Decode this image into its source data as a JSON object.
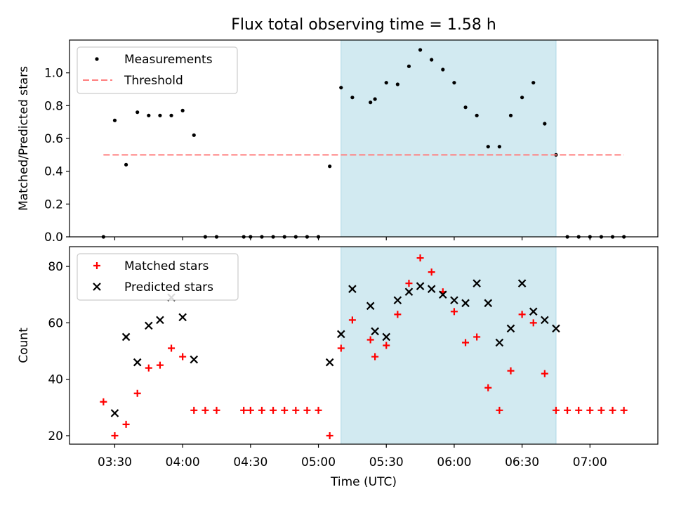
{
  "title": "Flux total observing time = 1.58 h",
  "colors": {
    "measurement": "#000000",
    "threshold": "#ff7f7f",
    "matched": "#ff0000",
    "predicted": "#000000",
    "highlight": "#add8e6"
  },
  "chart_data": [
    {
      "type": "scatter",
      "ylabel": "Matched/Predicted stars",
      "ylim": [
        0,
        1.2
      ],
      "yticks": [
        0.0,
        0.2,
        0.4,
        0.6,
        0.8,
        1.0
      ],
      "ytick_labels": [
        "0.0",
        "0.2",
        "0.4",
        "0.6",
        "0.8",
        "1.0"
      ],
      "highlight_span": [
        "05:10",
        "06:45"
      ],
      "legend": {
        "position": "upper-left",
        "entries": [
          "Measurements",
          "Threshold"
        ]
      },
      "series": [
        {
          "name": "Measurements",
          "marker": "dot",
          "x": [
            "03:25",
            "03:30",
            "03:35",
            "03:40",
            "03:45",
            "03:50",
            "03:55",
            "04:00",
            "04:05",
            "04:10",
            "04:15",
            "04:27",
            "04:30",
            "04:35",
            "04:40",
            "04:45",
            "04:50",
            "04:55",
            "05:00",
            "05:05",
            "05:10",
            "05:15",
            "05:23",
            "05:25",
            "05:30",
            "05:35",
            "05:40",
            "05:45",
            "05:50",
            "05:55",
            "06:00",
            "06:05",
            "06:10",
            "06:15",
            "06:20",
            "06:25",
            "06:30",
            "06:35",
            "06:40",
            "06:45",
            "06:50",
            "06:55",
            "07:00",
            "07:05",
            "07:10",
            "07:15"
          ],
          "values": [
            0,
            0.71,
            0.44,
            0.76,
            0.74,
            0.74,
            0.74,
            0.77,
            0.62,
            0,
            0,
            0,
            0,
            0,
            0,
            0,
            0,
            0,
            0,
            0.43,
            0.91,
            0.85,
            0.82,
            0.84,
            0.94,
            0.93,
            1.04,
            1.14,
            1.08,
            1.02,
            0.94,
            0.79,
            0.74,
            0.55,
            0.55,
            0.74,
            0.85,
            0.94,
            0.69,
            0.5,
            0,
            0,
            0,
            0,
            0,
            0
          ]
        },
        {
          "name": "Threshold",
          "style": "dashed-line",
          "x": [
            "03:25",
            "07:15"
          ],
          "values": [
            0.5,
            0.5
          ]
        }
      ]
    },
    {
      "type": "scatter",
      "xlabel": "Time (UTC)",
      "ylabel": "Count",
      "ylim": [
        17,
        87
      ],
      "yticks": [
        20,
        40,
        60,
        80
      ],
      "ytick_labels": [
        "20",
        "40",
        "60",
        "80"
      ],
      "xticks": [
        "03:30",
        "04:00",
        "04:30",
        "05:00",
        "05:30",
        "06:00",
        "06:30",
        "07:00"
      ],
      "xtick_labels": [
        "03:30",
        "04:00",
        "04:30",
        "05:00",
        "05:30",
        "06:00",
        "06:30",
        "07:00"
      ],
      "xlim": [
        "03:10",
        "07:30"
      ],
      "highlight_span": [
        "05:10",
        "06:45"
      ],
      "legend": {
        "position": "upper-left",
        "entries": [
          "Matched stars",
          "Predicted stars"
        ]
      },
      "series": [
        {
          "name": "Matched stars",
          "marker": "plus",
          "x": [
            "03:25",
            "03:30",
            "03:35",
            "03:40",
            "03:45",
            "03:50",
            "03:55",
            "04:00",
            "04:05",
            "04:10",
            "04:15",
            "04:27",
            "04:30",
            "04:35",
            "04:40",
            "04:45",
            "04:50",
            "04:55",
            "05:00",
            "05:05",
            "05:10",
            "05:15",
            "05:23",
            "05:25",
            "05:30",
            "05:35",
            "05:40",
            "05:45",
            "05:50",
            "05:55",
            "06:00",
            "06:05",
            "06:10",
            "06:15",
            "06:20",
            "06:25",
            "06:30",
            "06:35",
            "06:40",
            "06:45",
            "06:50",
            "06:55",
            "07:00",
            "07:05",
            "07:10",
            "07:15"
          ],
          "values": [
            32,
            20,
            24,
            35,
            44,
            45,
            51,
            48,
            29,
            29,
            29,
            29,
            29,
            29,
            29,
            29,
            29,
            29,
            29,
            20,
            51,
            61,
            54,
            48,
            52,
            63,
            74,
            83,
            78,
            71,
            64,
            53,
            55,
            37,
            29,
            43,
            63,
            60,
            42,
            29,
            29,
            29,
            29,
            29,
            29,
            29
          ]
        },
        {
          "name": "Predicted stars",
          "marker": "x",
          "x": [
            "03:30",
            "03:35",
            "03:40",
            "03:45",
            "03:50",
            "03:55",
            "04:00",
            "04:05",
            "05:05",
            "05:10",
            "05:15",
            "05:23",
            "05:25",
            "05:30",
            "05:35",
            "05:40",
            "05:45",
            "05:50",
            "05:55",
            "06:00",
            "06:05",
            "06:10",
            "06:15",
            "06:20",
            "06:25",
            "06:30",
            "06:35",
            "06:40",
            "06:45"
          ],
          "values": [
            28,
            55,
            46,
            59,
            61,
            69,
            62,
            47,
            46,
            56,
            72,
            66,
            57,
            55,
            68,
            71,
            73,
            72,
            70,
            68,
            67,
            74,
            67,
            53,
            58,
            74,
            64,
            61,
            58
          ]
        }
      ]
    }
  ]
}
